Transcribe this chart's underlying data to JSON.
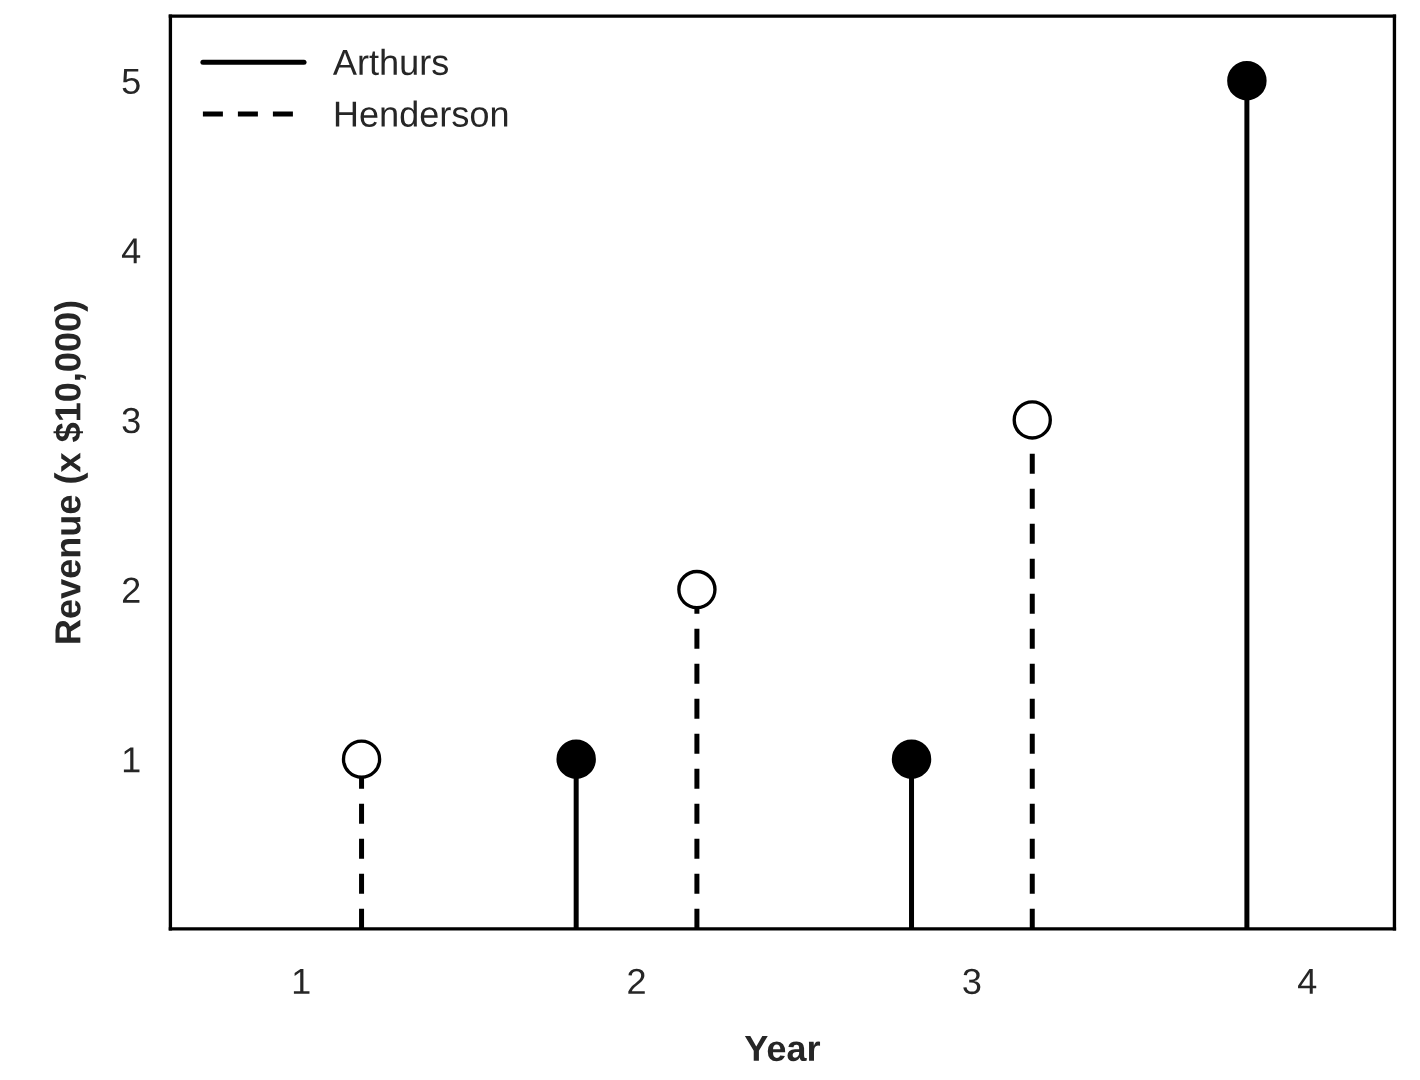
{
  "chart_data": {
    "type": "lollipop",
    "xlabel": "Year",
    "ylabel": "Revenue (x $10,000)",
    "categories": [
      "1",
      "2",
      "3",
      "4"
    ],
    "series": [
      {
        "name": "Arthurs",
        "color": "#000000",
        "line_style": "solid",
        "values": [
          null,
          1,
          1,
          5
        ]
      },
      {
        "name": "Henderson",
        "color": "#000000",
        "line_style": "dashed",
        "values": [
          1,
          2,
          3,
          null
        ]
      }
    ],
    "ylim": [
      0,
      5.38
    ],
    "yticks": [
      1,
      2,
      3,
      4,
      5
    ],
    "grid": false,
    "legend": "top left",
    "marker": "circle"
  }
}
